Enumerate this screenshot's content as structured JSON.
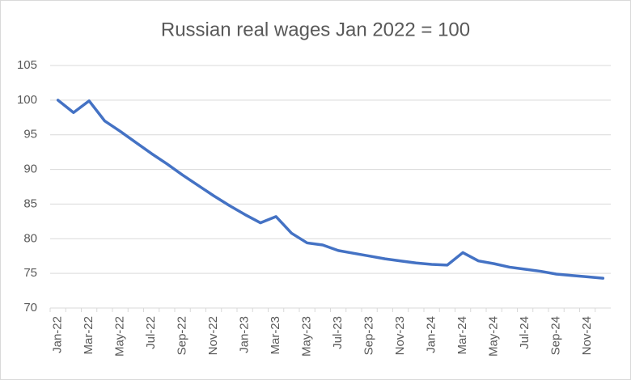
{
  "chart_data": {
    "type": "line",
    "title": "Russian real wages Jan 2022 = 100",
    "categories": [
      "Jan-22",
      null,
      "Mar-22",
      null,
      "May-22",
      null,
      "Jul-22",
      null,
      "Sep-22",
      null,
      "Nov-22",
      null,
      "Jan-23",
      null,
      "Mar-23",
      null,
      "May-23",
      null,
      "Jul-23",
      null,
      "Sep-23",
      null,
      "Nov-23",
      null,
      "Jan-24",
      null,
      "Mar-24",
      null,
      "May-24",
      null,
      "Jul-24",
      null,
      "Sep-24",
      null,
      "Nov-24",
      null
    ],
    "values": [
      100,
      98.2,
      99.9,
      97,
      95.5,
      93.9,
      92.3,
      90.8,
      89.2,
      87.7,
      86.2,
      84.8,
      83.5,
      82.3,
      83.2,
      80.8,
      79.4,
      79.1,
      78.3,
      77.9,
      77.5,
      77.1,
      76.8,
      76.5,
      76.3,
      76.2,
      78,
      76.8,
      76.4,
      75.9,
      75.6,
      75.3,
      74.9,
      74.7,
      74.5,
      74.3
    ],
    "color": "#4472c4",
    "ylim": [
      70,
      105
    ],
    "yticks": [
      70,
      75,
      80,
      85,
      90,
      95,
      100,
      105
    ],
    "grid": true
  }
}
